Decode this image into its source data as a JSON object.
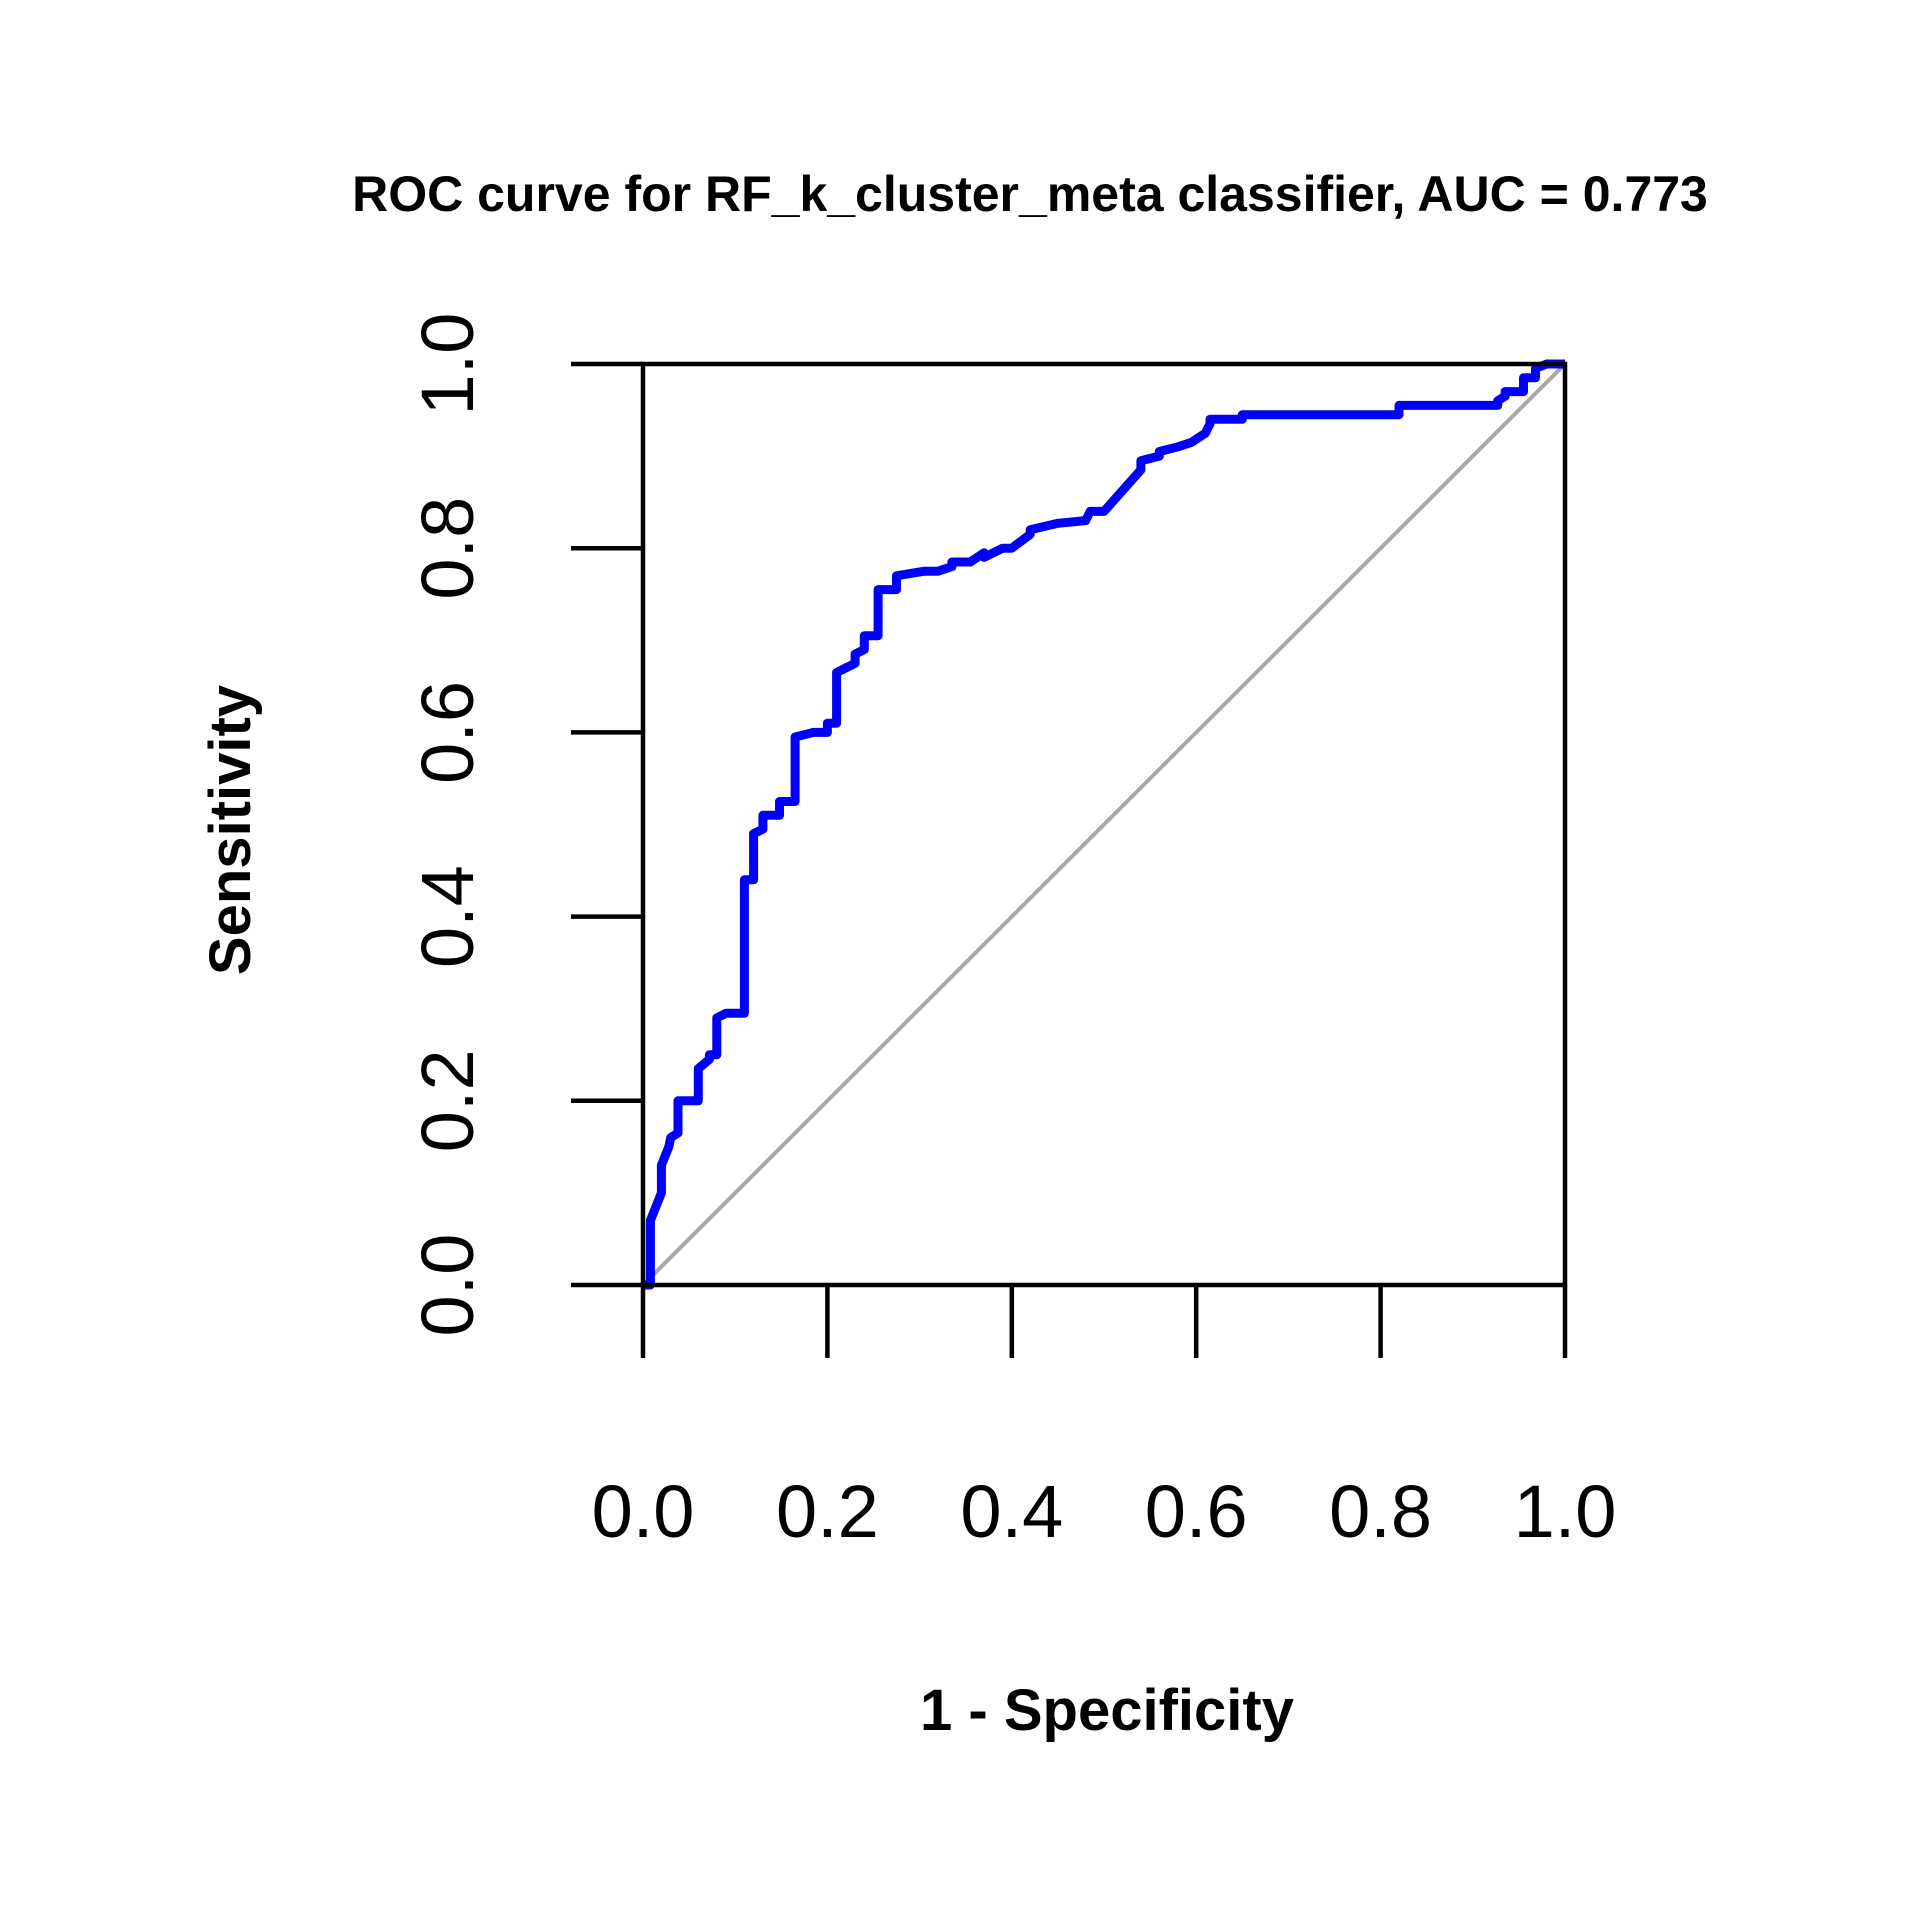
{
  "chart_data": {
    "type": "line",
    "title": "ROC curve for RF_k_cluster_meta classifier, AUC = 0.773",
    "xlabel": "1 - Specificity",
    "ylabel": "Sensitivity",
    "xlim": [
      0,
      1
    ],
    "ylim": [
      0,
      1
    ],
    "x_ticks": [
      "0.0",
      "0.2",
      "0.4",
      "0.6",
      "0.8",
      "1.0"
    ],
    "y_ticks": [
      "0.0",
      "0.2",
      "0.4",
      "0.6",
      "0.8",
      "1.0"
    ],
    "grid": false,
    "legend": "none",
    "reference_line": {
      "x": [
        0,
        1
      ],
      "y": [
        0,
        1
      ],
      "color": "#a9a9a9"
    },
    "series": [
      {
        "color": "#0000ff",
        "x": [
          0.0,
          0.008,
          0.008,
          0.02,
          0.02,
          0.028,
          0.03,
          0.038,
          0.038,
          0.052,
          0.052,
          0.06,
          0.06,
          0.072,
          0.072,
          0.08,
          0.08,
          0.09,
          0.11,
          0.11,
          0.12,
          0.12,
          0.13,
          0.13,
          0.148,
          0.148,
          0.165,
          0.165,
          0.185,
          0.2,
          0.2,
          0.21,
          0.21,
          0.23,
          0.23,
          0.24,
          0.24,
          0.255,
          0.255,
          0.275,
          0.275,
          0.305,
          0.32,
          0.335,
          0.335,
          0.355,
          0.37,
          0.37,
          0.39,
          0.4,
          0.42,
          0.42,
          0.45,
          0.48,
          0.485,
          0.5,
          0.54,
          0.54,
          0.56,
          0.56,
          0.58,
          0.595,
          0.61,
          0.615,
          0.615,
          0.63,
          0.65,
          0.65,
          0.82,
          0.82,
          0.927,
          0.927,
          0.935,
          0.935,
          0.955,
          0.955,
          0.968,
          0.968,
          0.98,
          1.0
        ],
        "y": [
          0.0,
          0.0,
          0.07,
          0.1,
          0.13,
          0.15,
          0.16,
          0.165,
          0.2,
          0.2,
          0.2,
          0.2,
          0.235,
          0.245,
          0.25,
          0.25,
          0.29,
          0.295,
          0.295,
          0.44,
          0.44,
          0.49,
          0.495,
          0.51,
          0.51,
          0.525,
          0.525,
          0.595,
          0.6,
          0.6,
          0.61,
          0.61,
          0.665,
          0.675,
          0.685,
          0.69,
          0.705,
          0.705,
          0.755,
          0.755,
          0.77,
          0.775,
          0.775,
          0.78,
          0.785,
          0.785,
          0.795,
          0.79,
          0.8,
          0.8,
          0.815,
          0.82,
          0.827,
          0.83,
          0.84,
          0.84,
          0.885,
          0.895,
          0.9,
          0.905,
          0.91,
          0.915,
          0.925,
          0.935,
          0.94,
          0.94,
          0.94,
          0.945,
          0.945,
          0.955,
          0.955,
          0.96,
          0.965,
          0.97,
          0.97,
          0.985,
          0.985,
          0.995,
          1.0,
          1.0
        ]
      }
    ]
  }
}
